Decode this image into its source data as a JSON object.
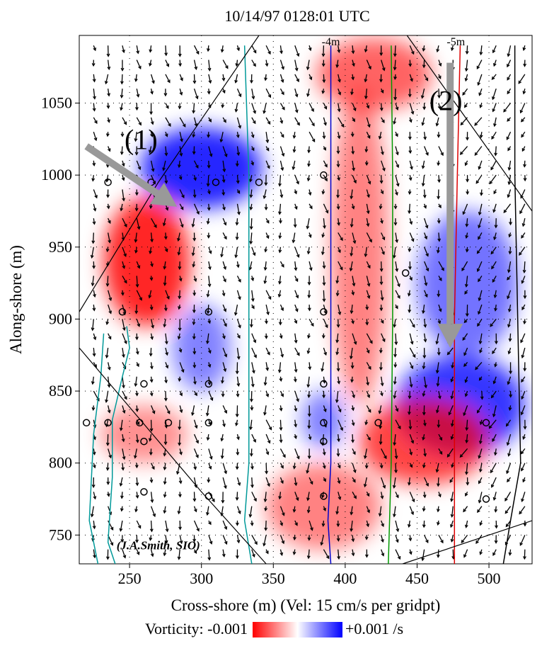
{
  "chart_data": {
    "type": "heatmap",
    "title": "10/14/97 0128:01 UTC",
    "xlabel": "Cross-shore (m) (Vel: 15 cm/s per gridpt)",
    "ylabel": "Along-shore (m)",
    "xlim": [
      215,
      530
    ],
    "ylim": [
      730,
      1097
    ],
    "x_ticks": [
      250,
      300,
      350,
      400,
      450,
      500
    ],
    "y_ticks": [
      750,
      800,
      850,
      900,
      950,
      1000,
      1050
    ],
    "grid": "dotted",
    "colorbar": {
      "label_left": "Vorticity: -0.001",
      "label_right": "+0.001 /s",
      "min": -0.001,
      "max": 0.001,
      "colors": [
        "#ff0000",
        "#ffffff",
        "#0000ff"
      ]
    },
    "annotations": [
      {
        "text": "(1)",
        "x": 258,
        "y": 1018
      },
      {
        "text": "(2)",
        "x": 470,
        "y": 1045
      },
      {
        "text": "-4m",
        "x": 390,
        "y": 1090
      },
      {
        "text": "-5m",
        "x": 477,
        "y": 1090
      },
      {
        "text": "(J.A.Smith, SIO)",
        "x": 270,
        "y": 740
      }
    ],
    "arrows_highlight": [
      {
        "from": [
          220,
          1020
        ],
        "to": [
          283,
          978
        ],
        "color": "#999999"
      },
      {
        "from": [
          473,
          1078
        ],
        "to": [
          473,
          880
        ],
        "color": "#999999"
      }
    ],
    "vorticity_blobs": [
      {
        "x": 262,
        "y": 940,
        "rx": 30,
        "ry": 45,
        "value": -0.001
      },
      {
        "x": 300,
        "y": 1005,
        "rx": 42,
        "ry": 28,
        "value": 0.001
      },
      {
        "x": 420,
        "y": 1070,
        "rx": 40,
        "ry": 25,
        "value": -0.0006
      },
      {
        "x": 480,
        "y": 840,
        "rx": 45,
        "ry": 35,
        "value": 0.0009
      },
      {
        "x": 455,
        "y": 815,
        "rx": 45,
        "ry": 30,
        "value": -0.0008
      },
      {
        "x": 485,
        "y": 925,
        "rx": 35,
        "ry": 50,
        "value": 0.0005
      },
      {
        "x": 410,
        "y": 950,
        "rx": 20,
        "ry": 110,
        "value": -0.0004
      },
      {
        "x": 385,
        "y": 770,
        "rx": 40,
        "ry": 30,
        "value": -0.0004
      },
      {
        "x": 300,
        "y": 880,
        "rx": 20,
        "ry": 30,
        "value": 0.0004
      },
      {
        "x": 385,
        "y": 830,
        "rx": 15,
        "ry": 20,
        "value": 0.0004
      },
      {
        "x": 260,
        "y": 820,
        "rx": 30,
        "ry": 20,
        "value": -0.0003
      }
    ],
    "depth_contours": [
      {
        "color": "#009999",
        "points": [
          [
            330,
            1090
          ],
          [
            333,
            1000
          ],
          [
            333,
            900
          ],
          [
            333,
            800
          ],
          [
            330,
            760
          ],
          [
            335,
            730
          ]
        ]
      },
      {
        "color": "#0000cc",
        "points": [
          [
            390,
            1090
          ],
          [
            390,
            1000
          ],
          [
            390,
            900
          ],
          [
            390,
            800
          ],
          [
            388,
            760
          ],
          [
            390,
            730
          ]
        ]
      },
      {
        "color": "#009900",
        "points": [
          [
            432,
            1090
          ],
          [
            433,
            1000
          ],
          [
            433,
            900
          ],
          [
            432,
            800
          ],
          [
            430,
            730
          ]
        ]
      },
      {
        "color": "#dd0000",
        "points": [
          [
            480,
            1090
          ],
          [
            478,
            1000
          ],
          [
            476,
            900
          ],
          [
            476,
            800
          ],
          [
            476,
            730
          ]
        ]
      },
      {
        "color": "#000000",
        "points": [
          [
            518,
            1090
          ],
          [
            518,
            1000
          ],
          [
            520,
            900
          ],
          [
            522,
            800
          ],
          [
            515,
            760
          ],
          [
            510,
            730
          ]
        ]
      },
      {
        "color": "#009999",
        "points": [
          [
            248,
            895
          ],
          [
            250,
            880
          ],
          [
            245,
            860
          ],
          [
            238,
            830
          ],
          [
            238,
            790
          ],
          [
            235,
            745
          ],
          [
            240,
            730
          ]
        ]
      },
      {
        "color": "#009999",
        "points": [
          [
            232,
            890
          ],
          [
            230,
            860
          ],
          [
            225,
            820
          ],
          [
            222,
            760
          ],
          [
            228,
            730
          ]
        ]
      }
    ],
    "survey_boundary": [
      [
        215,
        880
      ],
      [
        300,
        780
      ],
      [
        345,
        730
      ]
    ],
    "survey_boundary_top": [
      [
        215,
        905
      ],
      [
        270,
        995
      ],
      [
        340,
        1097
      ]
    ],
    "survey_boundary_right": [
      [
        443,
        1097
      ],
      [
        530,
        975
      ]
    ],
    "survey_boundary_bottom": [
      [
        440,
        730
      ],
      [
        530,
        760
      ]
    ],
    "circle_markers": [
      [
        235,
        995
      ],
      [
        265,
        995
      ],
      [
        310,
        995
      ],
      [
        340,
        995
      ],
      [
        385,
        1000
      ],
      [
        245,
        905
      ],
      [
        305,
        905
      ],
      [
        385,
        905
      ],
      [
        260,
        855
      ],
      [
        305,
        855
      ],
      [
        385,
        855
      ],
      [
        220,
        828
      ],
      [
        235,
        828
      ],
      [
        257,
        828
      ],
      [
        277,
        828
      ],
      [
        305,
        828
      ],
      [
        385,
        828
      ],
      [
        423,
        828
      ],
      [
        498,
        828
      ],
      [
        260,
        815
      ],
      [
        385,
        815
      ],
      [
        260,
        780
      ],
      [
        305,
        777
      ],
      [
        385,
        777
      ],
      [
        498,
        775
      ],
      [
        442,
        932
      ]
    ]
  }
}
